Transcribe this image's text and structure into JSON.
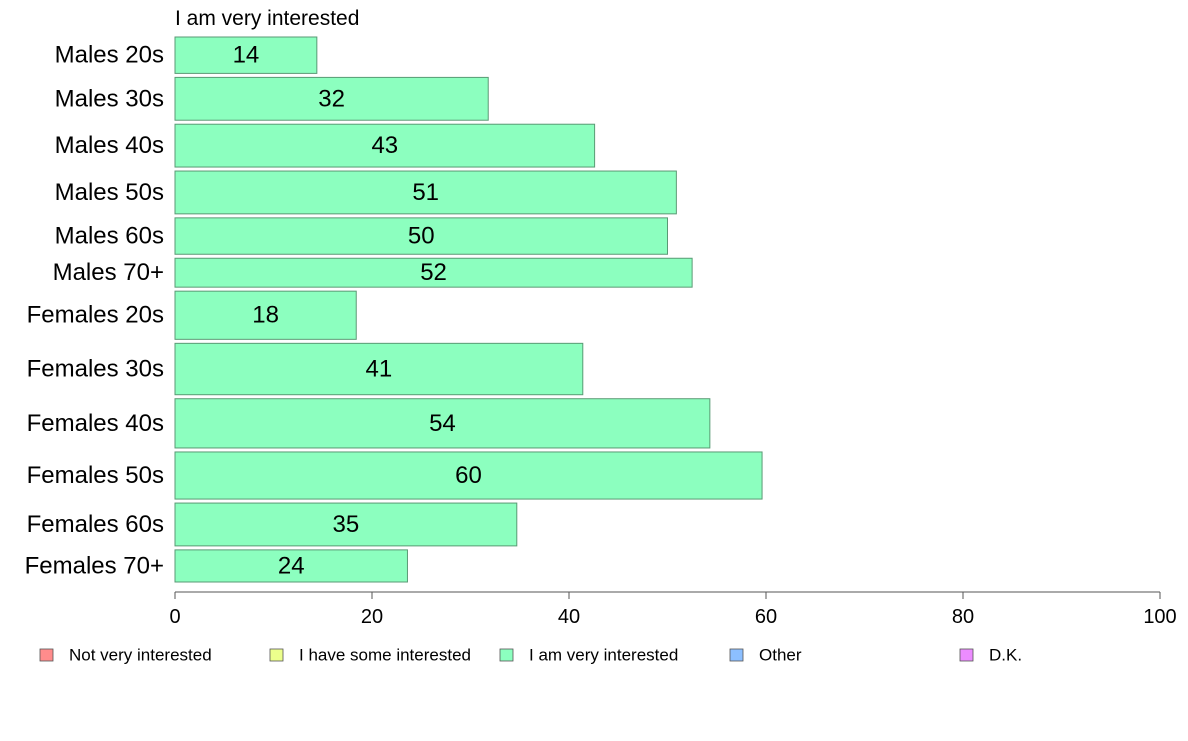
{
  "chart_data": {
    "type": "bar",
    "orientation": "horizontal",
    "title": "I am very interested",
    "categories": [
      "Males 20s",
      "Males 30s",
      "Males 40s",
      "Males 50s",
      "Males 60s",
      "Males 70+",
      "Females 20s",
      "Females 30s",
      "Females 40s",
      "Females 50s",
      "Females 60s",
      "Females 70+"
    ],
    "series": [
      {
        "name": "I am very interested",
        "color": "#8cffbf",
        "values": [
          14.4,
          31.8,
          42.6,
          50.9,
          50.0,
          52.5,
          18.4,
          41.4,
          54.3,
          59.6,
          34.7,
          23.6
        ],
        "labels": [
          "14",
          "32",
          "43",
          "51",
          "50",
          "52",
          "18",
          "41",
          "54",
          "60",
          "35",
          "24"
        ]
      }
    ],
    "relative_sample_sizes": [
      34,
      40,
      40,
      40,
      34,
      27,
      45,
      48,
      46,
      44,
      40,
      30
    ],
    "xlim": [
      0,
      100
    ],
    "xticks": [
      "0",
      "20",
      "40",
      "60",
      "80",
      "100"
    ],
    "legend": {
      "position": "bottom",
      "items": [
        {
          "label": "Not very interested",
          "color": "#ff8c8c"
        },
        {
          "label": "I have some interested",
          "color": "#ecff8c"
        },
        {
          "label": "I am very interested",
          "color": "#8cffbf"
        },
        {
          "label": "Other",
          "color": "#8cbfff"
        },
        {
          "label": "D.K.",
          "color": "#ec8cff"
        }
      ]
    },
    "bar_stroke": "#5a9a74"
  }
}
